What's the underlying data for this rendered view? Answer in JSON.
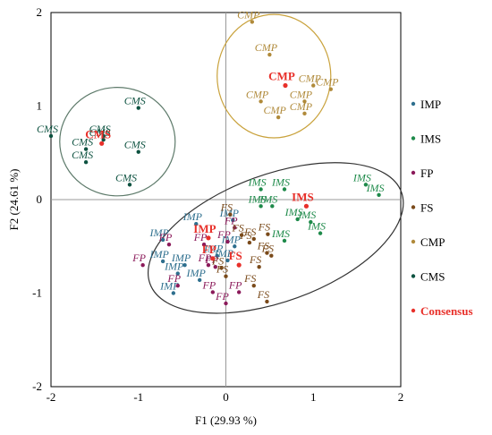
{
  "chart_data": {
    "type": "scatter",
    "title": "",
    "xlabel": "F1 (29.93 %)",
    "ylabel": "F2 (24.61 %)",
    "xlim": [
      -2,
      2
    ],
    "ylim": [
      -2,
      2
    ],
    "xticks": [
      "-2",
      "-1",
      "0",
      "1",
      "2"
    ],
    "yticks": [
      "2",
      "1",
      "0",
      "-1",
      "-2"
    ],
    "grid": false,
    "legend_position": "right",
    "colors": {
      "IMP": "#2e6f8e",
      "IMS": "#1e8a4a",
      "FP": "#8b1a5a",
      "FS": "#7a4a1a",
      "CMP": "#b08a3a",
      "CMS": "#0d5240",
      "Consensus": "#e8302a"
    },
    "legend": [
      "IMP",
      "IMS",
      "FP",
      "FS",
      "CMP",
      "CMS",
      "Consensus"
    ],
    "series": [
      {
        "name": "IMP",
        "points": [
          [
            -0.72,
            -0.43
          ],
          [
            -0.34,
            -0.26
          ],
          [
            -0.72,
            -0.66
          ],
          [
            -0.47,
            -0.7
          ],
          [
            -0.55,
            -0.79
          ],
          [
            -0.3,
            -0.86
          ],
          [
            0.08,
            -0.22
          ],
          [
            0.1,
            -0.5
          ],
          [
            0.02,
            -0.65
          ],
          [
            -0.6,
            -1.0
          ],
          [
            -0.1,
            -0.6
          ]
        ]
      },
      {
        "name": "IMS",
        "points": [
          [
            0.4,
            0.11
          ],
          [
            0.67,
            0.11
          ],
          [
            0.4,
            -0.07
          ],
          [
            0.53,
            -0.07
          ],
          [
            0.82,
            -0.21
          ],
          [
            0.97,
            -0.24
          ],
          [
            0.67,
            -0.44
          ],
          [
            1.08,
            -0.36
          ],
          [
            1.6,
            0.16
          ],
          [
            1.75,
            0.05
          ]
        ]
      },
      {
        "name": "FP",
        "points": [
          [
            -0.95,
            -0.7
          ],
          [
            -0.65,
            -0.48
          ],
          [
            -0.25,
            -0.48
          ],
          [
            0.1,
            -0.3
          ],
          [
            0.02,
            -0.45
          ],
          [
            -0.2,
            -0.7
          ],
          [
            -0.55,
            -0.92
          ],
          [
            -0.12,
            -0.72
          ],
          [
            -0.15,
            -0.99
          ],
          [
            0.15,
            -0.99
          ],
          [
            0.0,
            -1.11
          ]
        ]
      },
      {
        "name": "FS",
        "points": [
          [
            0.05,
            -0.16
          ],
          [
            0.18,
            -0.38
          ],
          [
            0.32,
            -0.42
          ],
          [
            0.48,
            -0.37
          ],
          [
            0.27,
            -0.46
          ],
          [
            0.47,
            -0.57
          ],
          [
            0.52,
            -0.6
          ],
          [
            -0.05,
            -0.73
          ],
          [
            0.38,
            -0.72
          ],
          [
            0.0,
            -0.82
          ],
          [
            0.32,
            -0.92
          ],
          [
            0.47,
            -1.09
          ]
        ]
      },
      {
        "name": "CMP",
        "points": [
          [
            0.3,
            1.9
          ],
          [
            0.5,
            1.55
          ],
          [
            1.0,
            1.22
          ],
          [
            1.2,
            1.18
          ],
          [
            0.9,
            1.05
          ],
          [
            0.4,
            1.05
          ],
          [
            0.9,
            0.92
          ],
          [
            0.6,
            0.88
          ]
        ]
      },
      {
        "name": "CMS",
        "points": [
          [
            -2.0,
            0.68
          ],
          [
            -1.6,
            0.54
          ],
          [
            -1.6,
            0.4
          ],
          [
            -1.4,
            0.68
          ],
          [
            -1.0,
            0.98
          ],
          [
            -1.0,
            0.51
          ],
          [
            -1.1,
            0.16
          ],
          [
            -1.4,
            0.64
          ]
        ]
      }
    ],
    "consensus": [
      {
        "name": "CMP",
        "x": 0.68,
        "y": 1.22
      },
      {
        "name": "CMS",
        "x": -1.42,
        "y": 0.6
      },
      {
        "name": "IMS",
        "x": 0.92,
        "y": -0.07
      },
      {
        "name": "IMP",
        "x": -0.2,
        "y": -0.41
      },
      {
        "name": "FP",
        "x": -0.15,
        "y": -0.63
      },
      {
        "name": "FS",
        "x": 0.15,
        "y": -0.7
      }
    ],
    "ellipses": [
      {
        "group": "CMS",
        "cx": -1.24,
        "cy": 0.62,
        "rx": 0.66,
        "ry": 0.58,
        "angle": 0
      },
      {
        "group": "CMP",
        "cx": 0.55,
        "cy": 1.32,
        "rx": 0.65,
        "ry": 0.66,
        "angle": 0
      },
      {
        "group": "IMP_IMS_FP_FS",
        "cx": 0.57,
        "cy": -0.41,
        "rx": 1.53,
        "ry": 0.68,
        "angle": 20
      }
    ]
  }
}
